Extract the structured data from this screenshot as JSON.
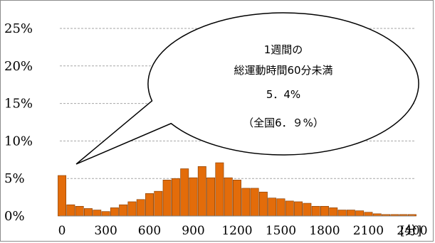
{
  "chart_data": {
    "type": "bar",
    "title": "",
    "xlabel": "",
    "ylabel": "",
    "x_unit_label": "[分]",
    "ylim": [
      0,
      25
    ],
    "xlim": [
      -15,
      2415
    ],
    "bin_width": 60,
    "y_ticks": [
      "0%",
      "5%",
      "10%",
      "15%",
      "20%",
      "25%"
    ],
    "y_tick_values": [
      0,
      5,
      10,
      15,
      20,
      25
    ],
    "x_ticks": [
      "0",
      "300",
      "600",
      "900",
      "1200",
      "1500",
      "1800",
      "2100",
      "2400"
    ],
    "x_tick_values": [
      0,
      300,
      600,
      900,
      1200,
      1500,
      1800,
      2100,
      2400
    ],
    "grid": true,
    "bar_color": "#e36c0a",
    "bar_edge_color": "#7f3a00",
    "x": [
      0,
      60,
      120,
      180,
      240,
      300,
      360,
      420,
      480,
      540,
      600,
      660,
      720,
      780,
      840,
      900,
      960,
      1020,
      1080,
      1140,
      1200,
      1260,
      1320,
      1380,
      1440,
      1500,
      1560,
      1620,
      1680,
      1740,
      1800,
      1860,
      1920,
      1980,
      2040,
      2100,
      2160,
      2220,
      2280,
      2340,
      2400
    ],
    "values": [
      5.4,
      1.5,
      1.3,
      1.0,
      0.8,
      0.6,
      1.1,
      1.5,
      1.9,
      2.2,
      3.0,
      3.3,
      4.8,
      5.0,
      6.3,
      5.1,
      6.6,
      5.1,
      7.1,
      5.1,
      4.8,
      3.7,
      3.7,
      3.2,
      2.4,
      2.3,
      2.0,
      1.9,
      1.7,
      1.3,
      1.3,
      1.1,
      0.8,
      0.8,
      0.7,
      0.5,
      0.3,
      0.2,
      0.2,
      0.2,
      0.2
    ],
    "annotation": {
      "line1": "1週間の",
      "line2": "総運動時間60分未満",
      "line3": "5．4%",
      "line4": "（全国6．９%）"
    }
  }
}
